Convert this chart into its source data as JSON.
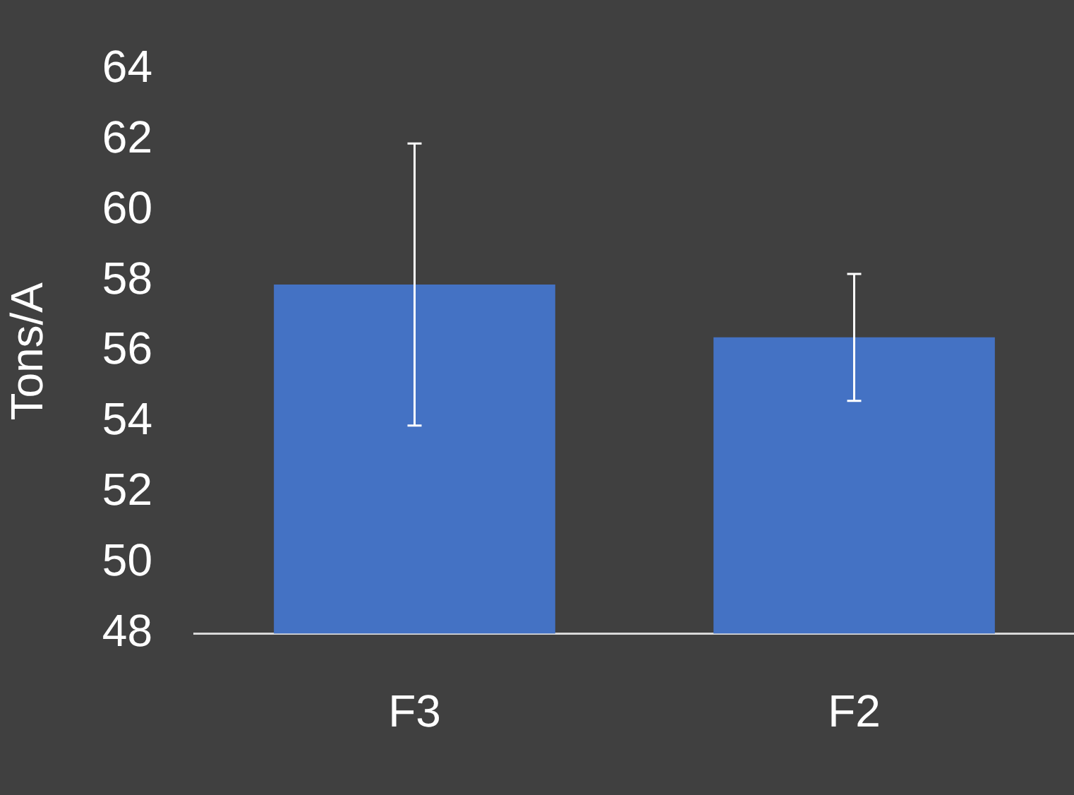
{
  "chart_data": {
    "type": "bar",
    "ylabel": "Tons/A",
    "categories": [
      "F3",
      "F2"
    ],
    "values": [
      57.9,
      56.4
    ],
    "errors": [
      4,
      1.8
    ],
    "color": "#4472c4",
    "ylim": [
      48,
      64
    ],
    "yticks": [
      48,
      50,
      52,
      54,
      56,
      58,
      60,
      62,
      64
    ],
    "grid": false,
    "legend": false
  }
}
